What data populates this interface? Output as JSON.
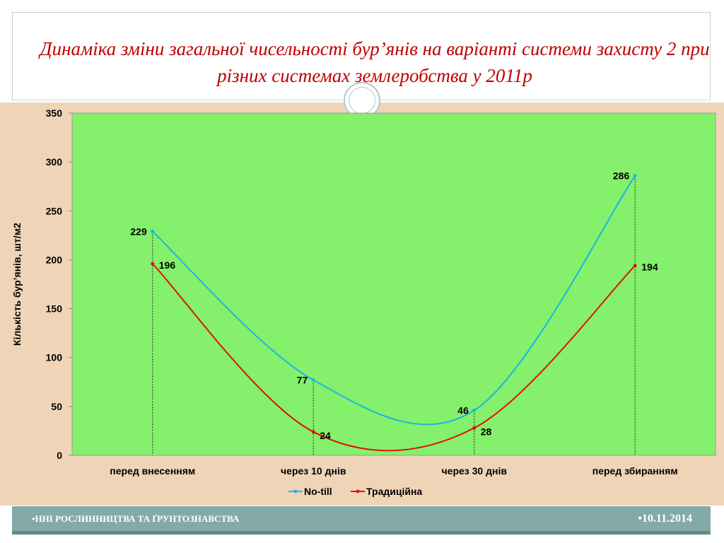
{
  "slide": {
    "title": "Динаміка зміни загальної чисельності бур’янів на варіанті системи захисту 2 при різних системах землеробства у 2011р",
    "footer_left": "•ННІ РОСЛИННИЦТВА ТА ҐРУНТОЗНАВСТВА",
    "footer_right": "•10.11.2014"
  },
  "colors": {
    "title": "#c00000",
    "plot_bg": "#84f06b",
    "chart_bg": "#f0d4b7",
    "footer": "#84a9a9"
  },
  "chart_data": {
    "type": "line",
    "title": "",
    "xlabel": "",
    "ylabel": "Кількість бур’янів, шт/м2",
    "categories": [
      "перед внесенням",
      "через 10 днів",
      "через 30 днів",
      "перед збиранням"
    ],
    "ylim": [
      0,
      350
    ],
    "yticks": [
      0,
      50,
      100,
      150,
      200,
      250,
      300,
      350
    ],
    "smooth": true,
    "legend_position": "bottom",
    "drop_lines": true,
    "series": [
      {
        "name": "No-till",
        "values": [
          229,
          77,
          46,
          286
        ],
        "color": "#1fb5e0"
      },
      {
        "name": "Традиційна",
        "values": [
          196,
          24,
          28,
          194
        ],
        "color": "#e01010"
      }
    ]
  }
}
